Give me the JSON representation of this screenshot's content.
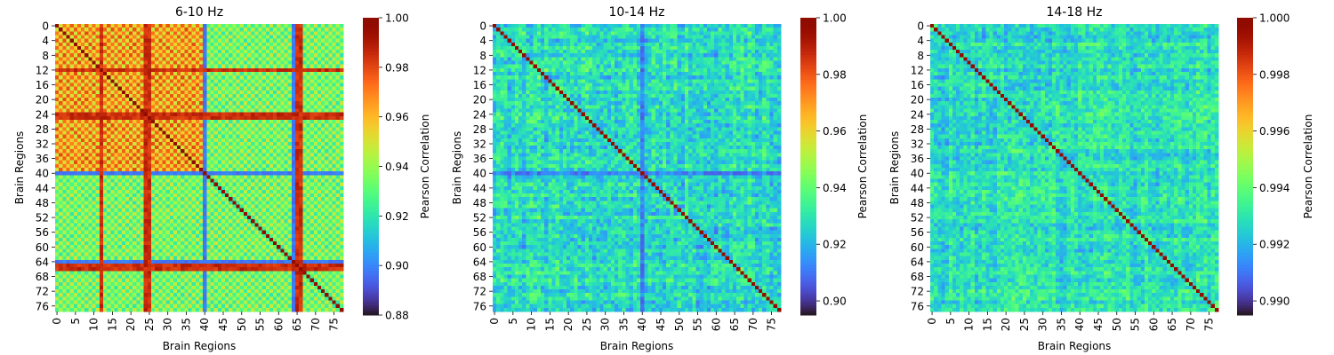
{
  "chart_data": [
    {
      "type": "heatmap",
      "title": "6-10 Hz",
      "xlabel": "Brain Regions",
      "ylabel": "Brain Regions",
      "n_regions": 78,
      "x_ticks": [
        0,
        5,
        10,
        15,
        20,
        25,
        30,
        35,
        40,
        45,
        50,
        55,
        60,
        65,
        70,
        75
      ],
      "y_ticks": [
        0,
        4,
        8,
        12,
        16,
        20,
        24,
        28,
        32,
        36,
        40,
        44,
        48,
        52,
        56,
        60,
        64,
        68,
        72,
        76
      ],
      "colorbar": {
        "label": "Pearson Correlation",
        "colormap": "turbo",
        "vmin": 0.88,
        "vmax": 1.0,
        "ticks": [
          0.88,
          0.9,
          0.92,
          0.94,
          0.96,
          0.98,
          1.0
        ],
        "tick_labels": [
          "0.88",
          "0.90",
          "0.92",
          "0.94",
          "0.96",
          "0.98",
          "1.00"
        ]
      },
      "pattern": {
        "kind": "block-checkerboard",
        "diagonal_value": 1.0,
        "hub_regions": [
          12,
          24,
          25,
          65,
          66
        ],
        "hub_value": 0.985,
        "low_regions": [
          40,
          64
        ],
        "low_value": 0.897,
        "block_split": 40,
        "checker_high_top": 0.975,
        "checker_low_top": 0.952,
        "checker_high_bottom": 0.945,
        "checker_low_bottom": 0.925
      }
    },
    {
      "type": "heatmap",
      "title": "10-14 Hz",
      "xlabel": "Brain Regions",
      "ylabel": "Brain Regions",
      "n_regions": 78,
      "x_ticks": [
        0,
        5,
        10,
        15,
        20,
        25,
        30,
        35,
        40,
        45,
        50,
        55,
        60,
        65,
        70,
        75
      ],
      "y_ticks": [
        0,
        4,
        8,
        12,
        16,
        20,
        24,
        28,
        32,
        36,
        40,
        44,
        48,
        52,
        56,
        60,
        64,
        68,
        72,
        76
      ],
      "colorbar": {
        "label": "Pearson Correlation",
        "colormap": "turbo",
        "vmin": 0.895,
        "vmax": 1.0,
        "ticks": [
          0.9,
          0.92,
          0.94,
          0.96,
          0.98,
          1.0
        ],
        "tick_labels": [
          "0.90",
          "0.92",
          "0.94",
          "0.96",
          "0.98",
          "1.00"
        ]
      },
      "pattern": {
        "kind": "noisy-diagonal",
        "diagonal_value": 1.0,
        "mean_offdiag": 0.928,
        "spread": 0.012,
        "low_regions": [
          40
        ],
        "low_value": 0.912
      }
    },
    {
      "type": "heatmap",
      "title": "14-18 Hz",
      "xlabel": "Brain Regions",
      "ylabel": "Brain Regions",
      "n_regions": 78,
      "x_ticks": [
        0,
        5,
        10,
        15,
        20,
        25,
        30,
        35,
        40,
        45,
        50,
        55,
        60,
        65,
        70,
        75
      ],
      "y_ticks": [
        0,
        4,
        8,
        12,
        16,
        20,
        24,
        28,
        32,
        36,
        40,
        44,
        48,
        52,
        56,
        60,
        64,
        68,
        72,
        76
      ],
      "colorbar": {
        "label": "Pearson Correlation",
        "colormap": "turbo",
        "vmin": 0.9895,
        "vmax": 1.0,
        "ticks": [
          0.99,
          0.992,
          0.994,
          0.996,
          0.998,
          1.0
        ],
        "tick_labels": [
          "0.990",
          "0.992",
          "0.994",
          "0.996",
          "0.998",
          "1.000"
        ]
      },
      "pattern": {
        "kind": "noisy-diagonal",
        "diagonal_value": 1.0,
        "mean_offdiag": 0.9928,
        "spread": 0.0011,
        "low_regions": [],
        "low_value": 0.9915
      }
    }
  ]
}
